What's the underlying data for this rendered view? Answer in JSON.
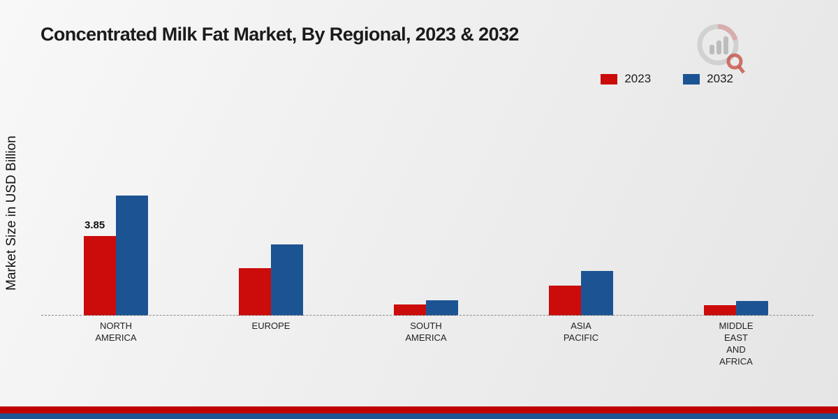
{
  "title": "Concentrated Milk Fat Market, By Regional, 2023 & 2032",
  "ylabel": "Market Size in USD Billion",
  "legend": [
    {
      "label": "2023",
      "color": "#cc0b0b"
    },
    {
      "label": "2032",
      "color": "#1c5493"
    }
  ],
  "logo": {
    "name": "market-research-future-logo"
  },
  "chart_data": {
    "type": "bar",
    "categories": [
      "NORTH AMERICA",
      "EUROPE",
      "SOUTH AMERICA",
      "ASIA PACIFIC",
      "MIDDLE EAST AND AFRICA"
    ],
    "series": [
      {
        "name": "2023",
        "color": "#cc0b0b",
        "values": [
          3.85,
          2.3,
          0.55,
          1.45,
          0.5
        ]
      },
      {
        "name": "2032",
        "color": "#1c5493",
        "values": [
          5.8,
          3.45,
          0.75,
          2.15,
          0.7
        ]
      }
    ],
    "annotations": [
      {
        "category_index": 0,
        "series_index": 0,
        "text": "3.85"
      }
    ],
    "title": "Concentrated Milk Fat Market, By Regional, 2023 & 2032",
    "xlabel": "",
    "ylabel": "Market Size in USD Billion",
    "ylim": [
      0,
      6.5
    ],
    "grid": false,
    "legend_position": "top-right",
    "baseline_style": "dashed"
  },
  "footer": {
    "stripe_top_color": "#c00000",
    "stripe_bottom_color": "#1c5493"
  }
}
